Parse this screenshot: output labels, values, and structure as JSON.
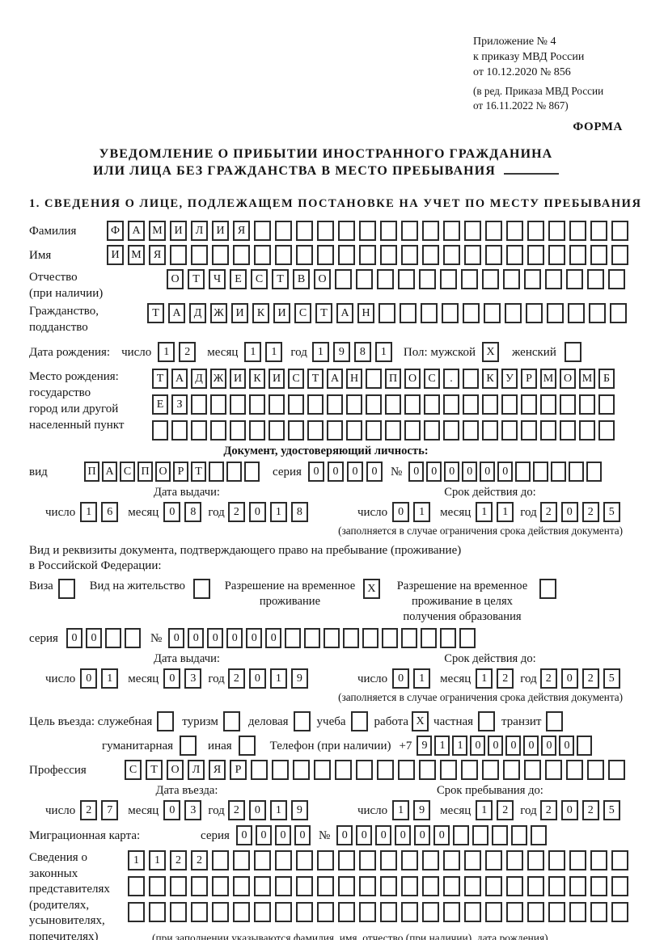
{
  "header": {
    "line1": "Приложение № 4",
    "line2": "к приказу МВД России",
    "line3": "от 10.12.2020 № 856",
    "line4": "(в ред. Приказа МВД России",
    "line5": "от 16.11.2022 № 867)",
    "form_label": "ФОРМА"
  },
  "title": {
    "line1": "УВЕДОМЛЕНИЕ О ПРИБЫТИИ ИНОСТРАННОГО ГРАЖДАНИНА",
    "line2": "ИЛИ ЛИЦА БЕЗ ГРАЖДАНСТВА В МЕСТО ПРЕБЫВАНИЯ"
  },
  "section1_heading": "1. СВЕДЕНИЯ О ЛИЦЕ, ПОДЛЕЖАЩЕМ ПОСТАНОВКЕ НА УЧЕТ ПО МЕСТУ ПРЕБЫВАНИЯ",
  "common": {
    "day": "число",
    "month": "месяц",
    "year": "год",
    "series": "серия",
    "number": "№"
  },
  "person": {
    "surname_label": "Фамилия",
    "surname": "ФАМИЛИЯ",
    "name_label": "Имя",
    "name": "ИМЯ",
    "patronymic_label1": "Отчество",
    "patronymic_label2": "(при наличии)",
    "patronymic": "ОТЧЕСТВО",
    "citizenship_label1": "Гражданство,",
    "citizenship_label2": "подданство",
    "citizenship": "ТАДЖИКИСТАН",
    "birth_label": "Дата рождения:",
    "birth_day": "12",
    "birth_month": "11",
    "birth_year": "1981",
    "sex_label": "Пол: мужской",
    "sex_male": "X",
    "female_label": "женский",
    "sex_female": "",
    "birthplace_label1": "Место рождения:",
    "birthplace_label2": "государство",
    "birthplace_label3": "город или другой",
    "birthplace_label4": "населенный пункт",
    "birthplace_row1": "ТАДЖИКИСТАН ПОС. КУРМОМБ",
    "birthplace_row2": "ЕЗ",
    "birthplace_row3": ""
  },
  "identity_doc": {
    "heading": "Документ, удостоверяющий личность:",
    "type_label": "вид",
    "type": "ПАСПОРТ",
    "series": "0000",
    "number": "000000",
    "issue_caption": "Дата выдачи:",
    "issue_day": "16",
    "issue_month": "08",
    "issue_year": "2018",
    "valid_caption": "Срок действия до:",
    "valid_day": "01",
    "valid_month": "11",
    "valid_year": "2025",
    "note": "(заполняется в случае ограничения срока действия документа)"
  },
  "residence_doc": {
    "intro1": "Вид и реквизиты документа, подтверждающего право на пребывание (проживание)",
    "intro2": "в Российской Федерации:",
    "options": [
      {
        "label": "Виза",
        "checked": ""
      },
      {
        "label": "Вид на жительство",
        "checked": ""
      },
      {
        "label": "Разрешение на временное проживание",
        "checked": "X"
      },
      {
        "label": "Разрешение на временное проживание в целях получения образования",
        "checked": ""
      }
    ],
    "series": "00",
    "number": "000000",
    "issue_caption": "Дата выдачи:",
    "issue_day": "01",
    "issue_month": "03",
    "issue_year": "2019",
    "valid_caption": "Срок действия до:",
    "valid_day": "01",
    "valid_month": "12",
    "valid_year": "2025",
    "note": "(заполняется в случае ограничения срока действия документа)"
  },
  "visit": {
    "purpose_label": "Цель въезда: служебная",
    "purposes": [
      {
        "label": "туризм",
        "checked": ""
      },
      {
        "label": "деловая",
        "checked": ""
      },
      {
        "label": "учеба",
        "checked": ""
      },
      {
        "label": "работа",
        "checked": "X"
      },
      {
        "label": "частная",
        "checked": ""
      },
      {
        "label": "транзит",
        "checked": ""
      }
    ],
    "purpose_first_checked": "",
    "humanitarian_label": "гуманитарная",
    "humanitarian_checked": "",
    "other_label": "иная",
    "other_checked": "",
    "phone_label": "Телефон (при наличии)",
    "phone_prefix": "+7",
    "phone": "911000000",
    "profession_label": "Профессия",
    "profession": "СТОЛЯР",
    "entry_caption": "Дата въезда:",
    "entry_day": "27",
    "entry_month": "03",
    "entry_year": "2019",
    "stay_caption": "Срок пребывания до:",
    "stay_day": "19",
    "stay_month": "12",
    "stay_year": "2025"
  },
  "migration_card": {
    "label": "Миграционная карта:",
    "series": "0000",
    "number": "000000"
  },
  "representatives": {
    "label1": "Сведения о",
    "label2": "законных",
    "label3": "представителях",
    "label4": "(родителях,",
    "label5": "усыновителях,",
    "label6": "попечителях)",
    "row1": "1122",
    "row2": "",
    "row3": "",
    "note": "(при заполнении указываются фамилия, имя, отчество (при наличии), дата рождения)"
  }
}
